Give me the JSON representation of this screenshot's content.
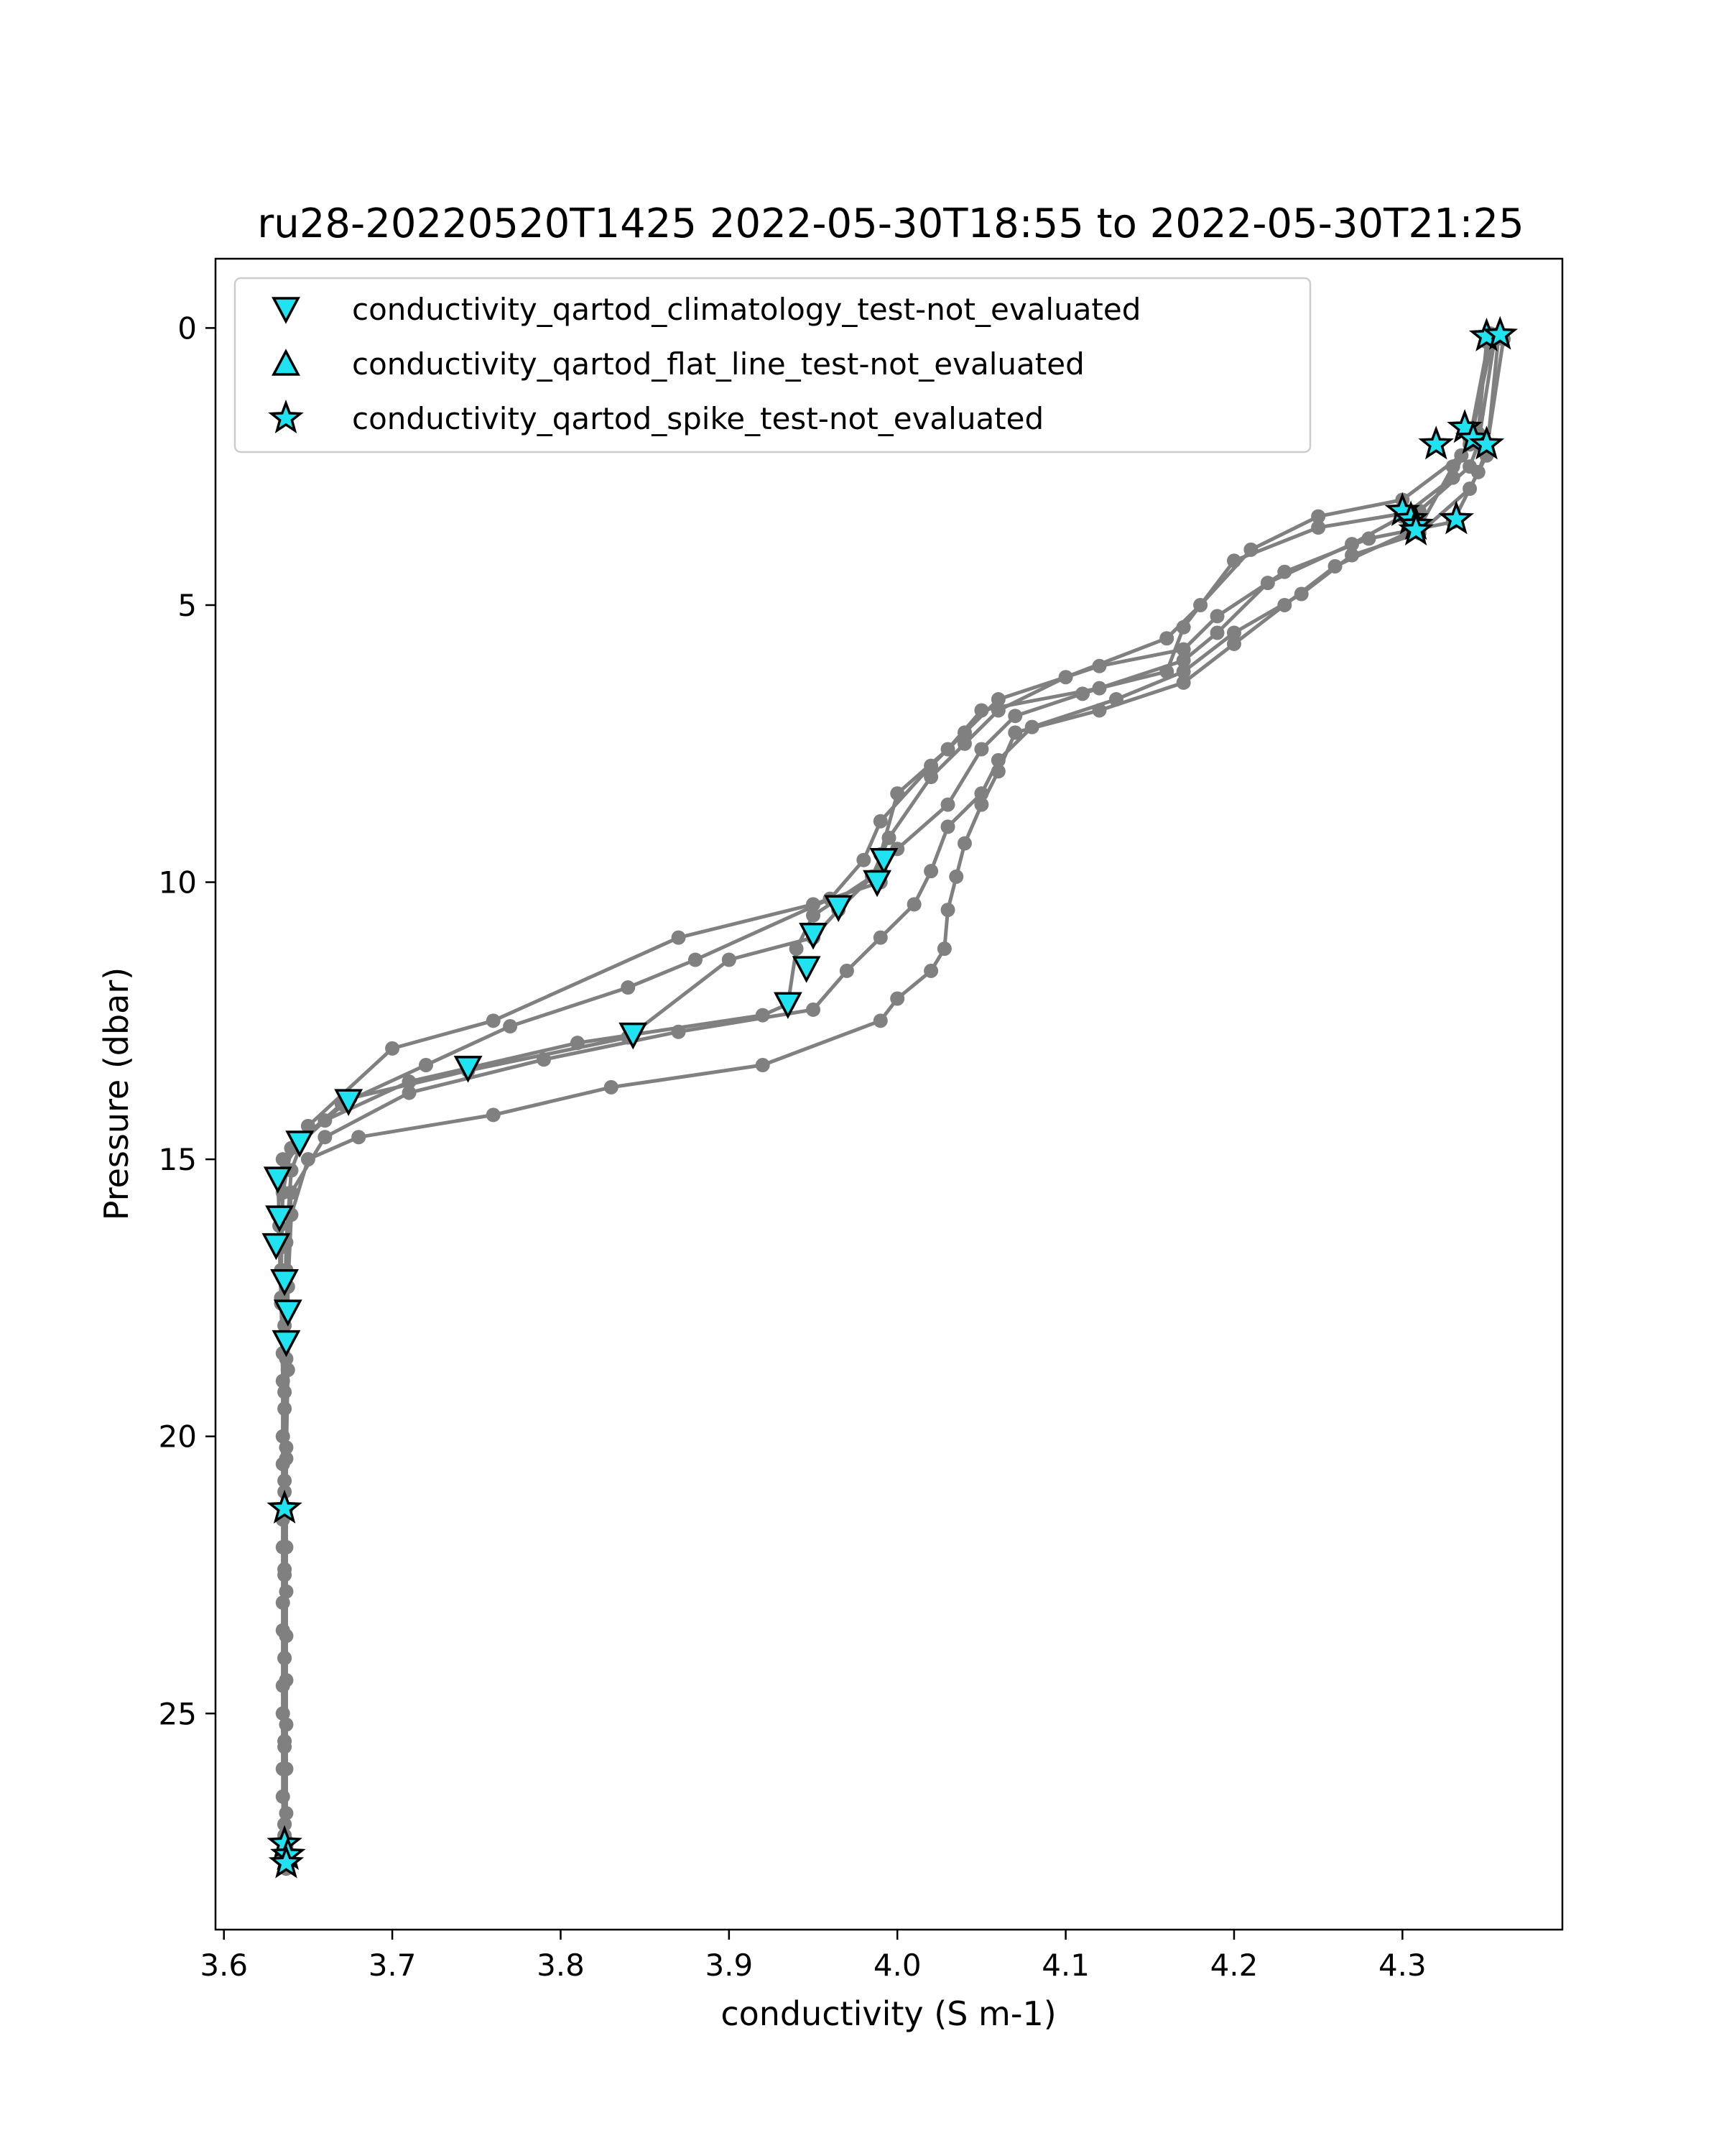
{
  "chart_data": {
    "type": "line",
    "title": "ru28-20220520T1425 2022-05-30T18:55 to 2022-05-30T21:25",
    "xlabel": "conductivity (S m-1)",
    "ylabel": "Pressure (dbar)",
    "xlim": [
      3.595,
      4.395
    ],
    "ylim": [
      28.9,
      -1.25
    ],
    "y_inverted": true,
    "xticks": [
      3.6,
      3.7,
      3.8,
      3.9,
      4.0,
      4.1,
      4.2,
      4.3
    ],
    "xtick_labels": [
      "3.6",
      "3.7",
      "3.8",
      "3.9",
      "4.0",
      "4.1",
      "4.2",
      "4.3"
    ],
    "yticks": [
      0,
      5,
      10,
      15,
      20,
      25
    ],
    "ytick_labels": [
      "0",
      "5",
      "10",
      "15",
      "20",
      "25"
    ],
    "grid": false,
    "legend_position": "top-left",
    "colors": {
      "profile_line": "#808080",
      "marker_fill": "#1fe3f0",
      "marker_edge": "#000000"
    },
    "legend": [
      {
        "label": "conductivity_qartod_climatology_test-not_evaluated",
        "marker": "triangle-down"
      },
      {
        "label": "conductivity_qartod_flat_line_test-not_evaluated",
        "marker": "triangle-up"
      },
      {
        "label": "conductivity_qartod_spike_test-not_evaluated",
        "marker": "star"
      }
    ],
    "profiles": [
      {
        "points": [
          [
            4.355,
            0.15
          ],
          [
            4.345,
            2.1
          ],
          [
            4.34,
            2.5
          ],
          [
            4.31,
            3.3
          ],
          [
            4.25,
            3.6
          ],
          [
            4.2,
            4.2
          ],
          [
            4.17,
            5.4
          ],
          [
            4.16,
            6.2
          ],
          [
            4.12,
            6.5
          ],
          [
            4.05,
            6.9
          ],
          [
            4.03,
            7.6
          ],
          [
            4.0,
            8.4
          ],
          [
            3.99,
            9.5
          ],
          [
            3.99,
            10.0
          ],
          [
            3.95,
            10.4
          ],
          [
            3.87,
            11.0
          ],
          [
            3.76,
            12.5
          ],
          [
            3.7,
            13.0
          ],
          [
            3.65,
            14.4
          ],
          [
            3.64,
            15.2
          ],
          [
            3.637,
            16.5
          ],
          [
            3.636,
            18.0
          ],
          [
            3.636,
            19.5
          ],
          [
            3.636,
            21.0
          ],
          [
            3.636,
            22.5
          ],
          [
            3.636,
            24.0
          ],
          [
            3.636,
            25.5
          ],
          [
            3.636,
            27.0
          ],
          [
            3.637,
            27.5
          ]
        ]
      },
      {
        "points": [
          [
            4.36,
            0.2
          ],
          [
            4.35,
            2.2
          ],
          [
            4.345,
            2.6
          ],
          [
            4.33,
            3.5
          ],
          [
            4.28,
            3.8
          ],
          [
            4.23,
            4.4
          ],
          [
            4.19,
            5.2
          ],
          [
            4.17,
            5.8
          ],
          [
            4.12,
            6.1
          ],
          [
            4.06,
            6.7
          ],
          [
            4.04,
            7.3
          ],
          [
            4.02,
            7.9
          ],
          [
            3.99,
            8.9
          ],
          [
            3.98,
            9.6
          ],
          [
            3.96,
            10.3
          ],
          [
            3.88,
            11.4
          ],
          [
            3.84,
            11.9
          ],
          [
            3.77,
            12.6
          ],
          [
            3.72,
            13.3
          ],
          [
            3.67,
            14.0
          ],
          [
            3.64,
            14.8
          ],
          [
            3.635,
            15.6
          ],
          [
            3.634,
            17.0
          ],
          [
            3.635,
            18.5
          ],
          [
            3.635,
            20.0
          ],
          [
            3.635,
            21.5
          ],
          [
            3.635,
            23.0
          ],
          [
            3.635,
            24.5
          ],
          [
            3.635,
            26.0
          ],
          [
            3.636,
            27.2
          ],
          [
            3.637,
            27.7
          ]
        ]
      },
      {
        "points": [
          [
            4.35,
            0.25
          ],
          [
            4.345,
            1.9
          ],
          [
            4.335,
            2.3
          ],
          [
            4.3,
            3.1
          ],
          [
            4.25,
            3.4
          ],
          [
            4.21,
            4.0
          ],
          [
            4.18,
            5.0
          ],
          [
            4.16,
            5.6
          ],
          [
            4.1,
            6.3
          ],
          [
            4.06,
            6.9
          ],
          [
            4.04,
            7.5
          ],
          [
            4.02,
            8.1
          ],
          [
            3.995,
            9.2
          ],
          [
            3.985,
            9.9
          ],
          [
            3.965,
            10.5
          ],
          [
            3.95,
            11.0
          ],
          [
            3.9,
            11.4
          ],
          [
            3.84,
            12.8
          ],
          [
            3.745,
            13.4
          ],
          [
            3.675,
            13.9
          ],
          [
            3.645,
            14.7
          ],
          [
            3.632,
            15.3
          ],
          [
            3.633,
            16.2
          ],
          [
            3.634,
            17.5
          ],
          [
            3.635,
            19.0
          ],
          [
            3.635,
            20.5
          ],
          [
            3.635,
            22.0
          ],
          [
            3.635,
            23.5
          ],
          [
            3.635,
            25.0
          ],
          [
            3.635,
            26.5
          ],
          [
            3.636,
            27.6
          ],
          [
            3.637,
            27.8
          ]
        ]
      },
      {
        "points": [
          [
            4.352,
            0.1
          ],
          [
            4.34,
            2.0
          ],
          [
            4.33,
            2.7
          ],
          [
            4.3,
            3.4
          ],
          [
            4.27,
            3.9
          ],
          [
            4.22,
            4.6
          ],
          [
            4.19,
            5.5
          ],
          [
            4.17,
            6.0
          ],
          [
            4.11,
            6.6
          ],
          [
            4.07,
            7.0
          ],
          [
            4.05,
            7.6
          ],
          [
            4.03,
            8.6
          ],
          [
            4.0,
            9.4
          ],
          [
            3.99,
            9.8
          ],
          [
            3.95,
            10.6
          ],
          [
            3.94,
            11.2
          ],
          [
            3.935,
            12.2
          ],
          [
            3.92,
            12.4
          ],
          [
            3.81,
            12.9
          ],
          [
            3.71,
            13.6
          ],
          [
            3.66,
            14.3
          ],
          [
            3.635,
            15.0
          ],
          [
            3.632,
            16.0
          ],
          [
            3.633,
            16.6
          ],
          [
            3.634,
            17.6
          ],
          [
            3.636,
            19.2
          ],
          [
            3.636,
            20.8
          ],
          [
            3.636,
            22.4
          ],
          [
            3.636,
            24.0
          ],
          [
            3.636,
            25.6
          ],
          [
            3.636,
            27.0
          ],
          [
            3.637,
            27.4
          ]
        ]
      },
      {
        "points": [
          [
            4.357,
            0.18
          ],
          [
            4.35,
            2.3
          ],
          [
            4.34,
            2.9
          ],
          [
            4.31,
            3.7
          ],
          [
            4.27,
            4.1
          ],
          [
            4.24,
            4.8
          ],
          [
            4.2,
            5.5
          ],
          [
            4.17,
            6.2
          ],
          [
            4.13,
            6.7
          ],
          [
            4.08,
            7.2
          ],
          [
            4.06,
            7.8
          ],
          [
            4.05,
            8.4
          ],
          [
            4.03,
            9.0
          ],
          [
            4.02,
            9.8
          ],
          [
            4.01,
            10.4
          ],
          [
            3.99,
            11.0
          ],
          [
            3.97,
            11.6
          ],
          [
            3.95,
            12.3
          ],
          [
            3.87,
            12.7
          ],
          [
            3.79,
            13.2
          ],
          [
            3.71,
            13.8
          ],
          [
            3.66,
            14.6
          ],
          [
            3.64,
            15.6
          ],
          [
            3.637,
            17.0
          ],
          [
            3.637,
            18.6
          ],
          [
            3.637,
            20.2
          ],
          [
            3.637,
            21.3
          ],
          [
            3.637,
            22.8
          ],
          [
            3.637,
            24.4
          ],
          [
            3.637,
            26.0
          ],
          [
            3.637,
            27.3
          ]
        ]
      },
      {
        "points": [
          [
            4.354,
            0.12
          ],
          [
            4.34,
            2.1
          ],
          [
            4.33,
            2.5
          ],
          [
            4.31,
            3.6
          ],
          [
            4.26,
            4.3
          ],
          [
            4.23,
            5.0
          ],
          [
            4.2,
            5.7
          ],
          [
            4.17,
            6.4
          ],
          [
            4.12,
            6.9
          ],
          [
            4.07,
            7.3
          ],
          [
            4.06,
            8.0
          ],
          [
            4.05,
            8.6
          ],
          [
            4.04,
            9.3
          ],
          [
            4.035,
            9.9
          ],
          [
            4.03,
            10.5
          ],
          [
            4.028,
            11.2
          ],
          [
            4.02,
            11.6
          ],
          [
            4.0,
            12.1
          ],
          [
            3.99,
            12.5
          ],
          [
            3.92,
            13.3
          ],
          [
            3.83,
            13.7
          ],
          [
            3.76,
            14.2
          ],
          [
            3.68,
            14.6
          ],
          [
            3.65,
            15.0
          ],
          [
            3.64,
            16.0
          ],
          [
            3.638,
            17.3
          ],
          [
            3.638,
            18.8
          ],
          [
            3.637,
            20.4
          ],
          [
            3.637,
            22.0
          ],
          [
            3.637,
            23.6
          ],
          [
            3.637,
            25.2
          ],
          [
            3.637,
            26.8
          ],
          [
            3.638,
            27.7
          ]
        ]
      }
    ],
    "markers": [
      {
        "type": "triangle-down",
        "points": [
          [
            3.992,
            9.6
          ],
          [
            3.988,
            10.0
          ],
          [
            3.965,
            10.45
          ],
          [
            3.95,
            10.95
          ],
          [
            3.946,
            11.55
          ],
          [
            3.935,
            12.2
          ],
          [
            3.843,
            12.75
          ],
          [
            3.745,
            13.35
          ],
          [
            3.674,
            13.95
          ],
          [
            3.645,
            14.7
          ],
          [
            3.632,
            15.35
          ],
          [
            3.633,
            16.05
          ],
          [
            3.631,
            16.55
          ],
          [
            3.636,
            17.2
          ],
          [
            3.638,
            17.75
          ],
          [
            3.637,
            18.3
          ]
        ]
      },
      {
        "type": "triangle-up",
        "points": []
      },
      {
        "type": "star",
        "points": [
          [
            4.35,
            0.15
          ],
          [
            4.358,
            0.12
          ],
          [
            4.337,
            1.8
          ],
          [
            4.342,
            2.0
          ],
          [
            4.35,
            2.1
          ],
          [
            4.32,
            2.1
          ],
          [
            4.3,
            3.3
          ],
          [
            4.305,
            3.45
          ],
          [
            4.308,
            3.55
          ],
          [
            4.308,
            3.65
          ],
          [
            4.332,
            3.45
          ],
          [
            3.636,
            21.3
          ],
          [
            3.636,
            27.35
          ],
          [
            3.638,
            27.55
          ],
          [
            3.637,
            27.7
          ]
        ]
      }
    ]
  }
}
